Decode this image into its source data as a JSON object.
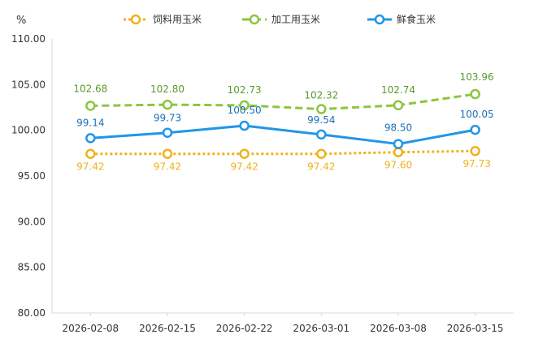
{
  "chart_data": {
    "type": "line",
    "unit_label": "%",
    "categories": [
      "2026-02-08",
      "2026-02-15",
      "2026-02-22",
      "2026-03-01",
      "2026-03-08",
      "2026-03-15"
    ],
    "ylim": [
      80,
      110
    ],
    "yticks": [
      "80.00",
      "85.00",
      "90.00",
      "95.00",
      "100.00",
      "105.00",
      "110.00"
    ],
    "legend_position": "top-center",
    "grid": false,
    "series": [
      {
        "name": "饲料用玉米",
        "color": "#f0b21b",
        "style": "dotted",
        "values": [
          97.42,
          97.42,
          97.42,
          97.42,
          97.6,
          97.73
        ],
        "labels": [
          "97.42",
          "97.42",
          "97.42",
          "97.42",
          "97.60",
          "97.73"
        ]
      },
      {
        "name": "加工用玉米",
        "color": "#8cc63f",
        "label_color": "#5a9a2a",
        "style": "dashed",
        "values": [
          102.68,
          102.8,
          102.73,
          102.32,
          102.74,
          103.96
        ],
        "labels": [
          "102.68",
          "102.80",
          "102.73",
          "102.32",
          "102.74",
          "103.96"
        ]
      },
      {
        "name": "鲜食玉米",
        "color": "#2196e8",
        "label_color": "#1a6fb8",
        "style": "solid",
        "values": [
          99.14,
          99.73,
          100.5,
          99.54,
          98.5,
          100.05
        ],
        "labels": [
          "99.14",
          "99.73",
          "100.50",
          "99.54",
          "98.50",
          "100.05"
        ]
      }
    ]
  }
}
